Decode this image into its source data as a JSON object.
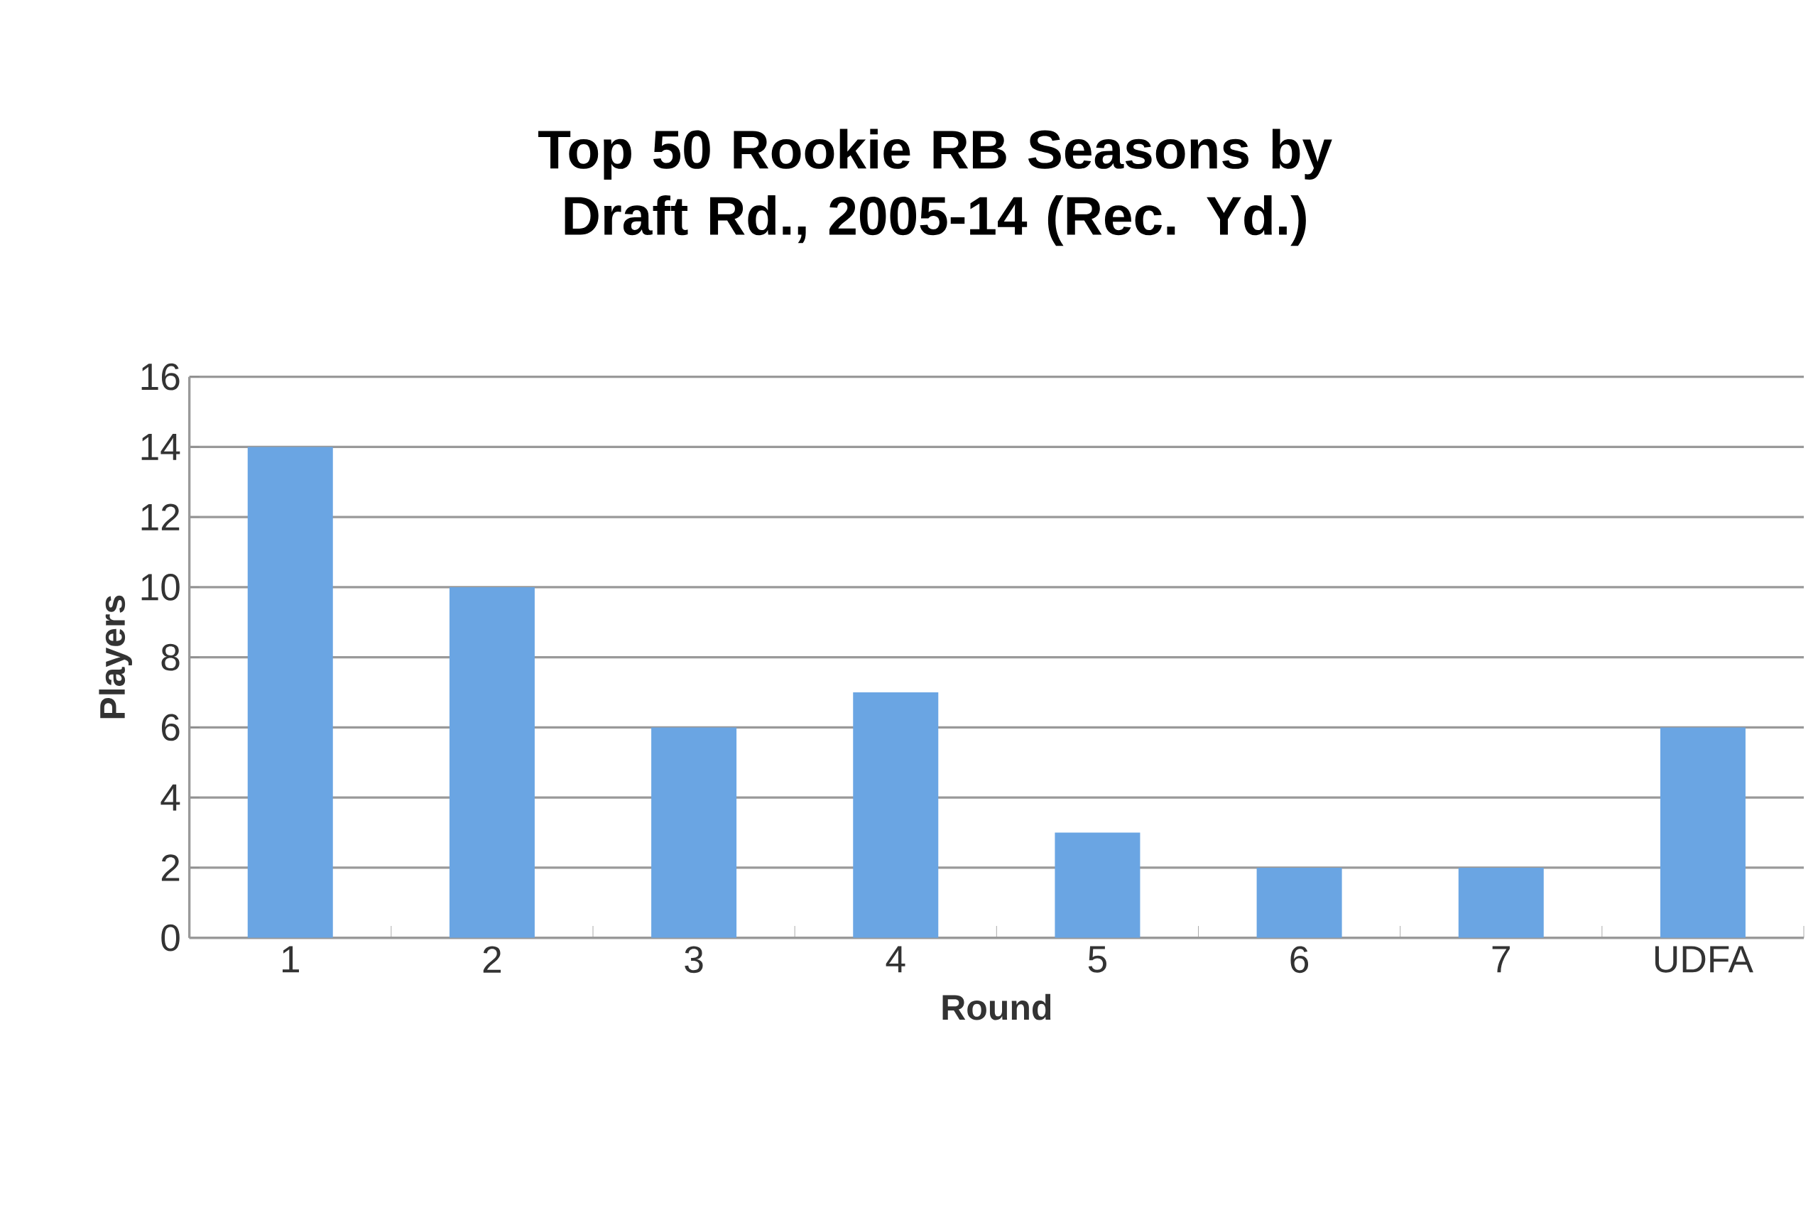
{
  "chart_data": {
    "type": "bar",
    "title": "Top 50 Rookie RB Seasons by Draft Rd., 2005-14 (Rec. Yd.)",
    "xlabel": "Round",
    "ylabel": "Players",
    "categories": [
      "1",
      "2",
      "3",
      "4",
      "5",
      "6",
      "7",
      "UDFA"
    ],
    "values": [
      14,
      10,
      6,
      7,
      3,
      2,
      2,
      6
    ],
    "color": "#6aa5e3",
    "ylim": [
      0,
      16
    ],
    "yticks": [
      0,
      2,
      4,
      6,
      8,
      10,
      12,
      14,
      16
    ],
    "grid": "y"
  }
}
